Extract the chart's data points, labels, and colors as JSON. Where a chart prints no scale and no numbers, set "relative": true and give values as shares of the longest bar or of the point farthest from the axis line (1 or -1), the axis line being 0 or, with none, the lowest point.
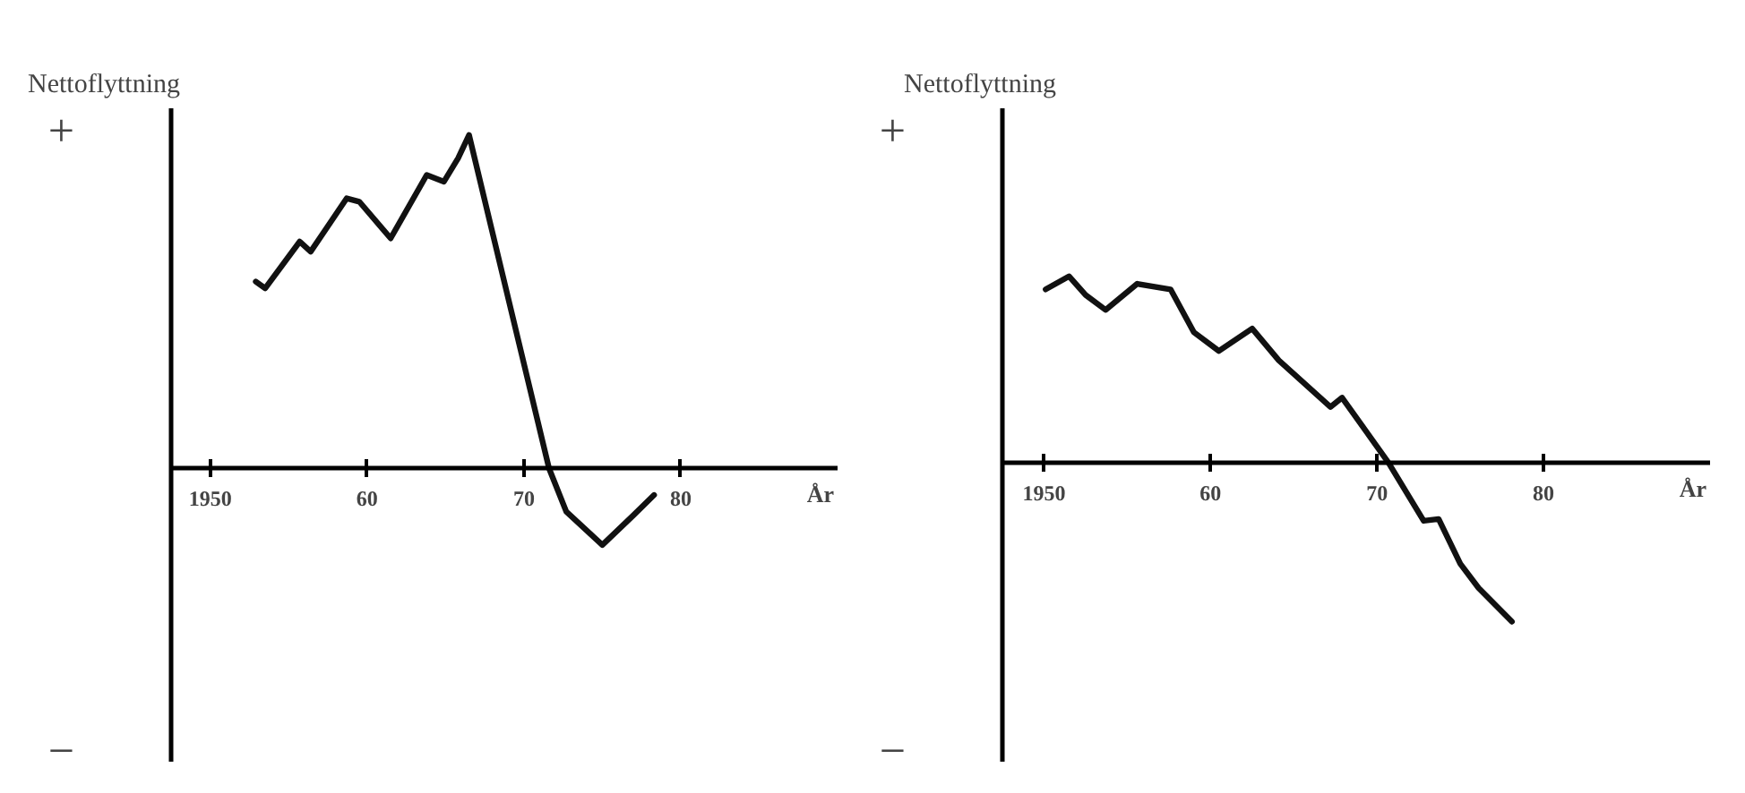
{
  "chart_data": [
    {
      "type": "line",
      "title": "Nettoflyttning",
      "relative": true,
      "annotations": [
        "+",
        "−"
      ],
      "xlabel": "År",
      "xlim": [
        1947.5,
        1990
      ],
      "xticks": [
        1950,
        {
          "value": 1960,
          "label": "60"
        },
        {
          "value": 1970,
          "label": "70"
        },
        {
          "value": 1980,
          "label": "80"
        }
      ],
      "series": [
        {
          "color": "#111111",
          "x": [
            1952.9,
            1953.5,
            1955.7,
            1956.4,
            1958.7,
            1959.5,
            1961.5,
            1963.8,
            1964.9,
            1965.8,
            1966.5,
            1971.6,
            1972.7,
            1975.0,
            1977.0,
            1978.3
          ],
          "values": [
            0.56,
            0.54,
            0.68,
            0.65,
            0.81,
            0.8,
            0.69,
            0.88,
            0.86,
            0.93,
            1.0,
            0,
            -0.13,
            -0.23,
            -0.14,
            -0.08
          ]
        }
      ]
    },
    {
      "type": "line",
      "title": "Nettoflyttning",
      "relative": true,
      "annotations": [
        "+",
        "−"
      ],
      "xlabel": "År",
      "xlim": [
        1947.5,
        1990
      ],
      "xticks": [
        1950,
        {
          "value": 1960,
          "label": "60"
        },
        {
          "value": 1970,
          "label": "70"
        },
        {
          "value": 1980,
          "label": "80"
        }
      ],
      "series": [
        {
          "color": "#111111",
          "x": [
            1950.1,
            1951.5,
            1952.5,
            1953.7,
            1955.6,
            1957.6,
            1959.0,
            1960.5,
            1962.5,
            1964.1,
            1967.2,
            1967.9,
            1970.7,
            1972.8,
            1973.7,
            1975.0,
            1976.1,
            1978.1
          ],
          "values": [
            0.93,
            1.0,
            0.9,
            0.82,
            0.96,
            0.93,
            0.7,
            0.6,
            0.72,
            0.55,
            0.3,
            0.35,
            0,
            -0.31,
            -0.3,
            -0.54,
            -0.67,
            -0.85
          ]
        }
      ]
    }
  ]
}
